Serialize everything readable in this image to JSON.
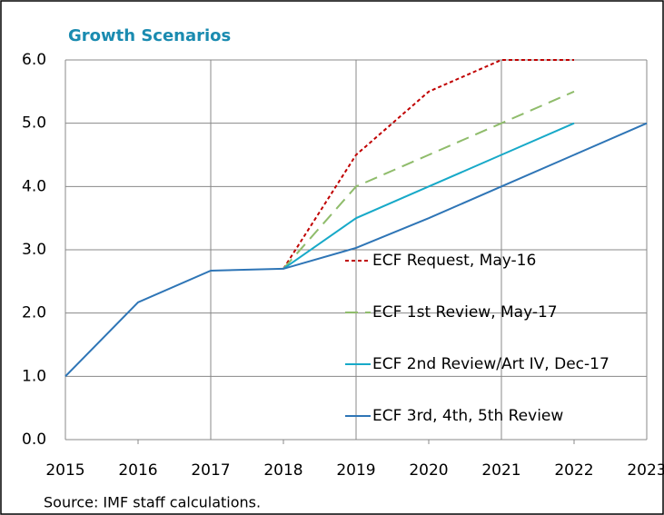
{
  "chart_data": {
    "type": "line",
    "title": "Growth Scenarios",
    "source": "Source: IMF staff calculations.",
    "x": [
      2015,
      2016,
      2017,
      2018,
      2019,
      2020,
      2021,
      2022,
      2023
    ],
    "xlim": [
      2015,
      2023
    ],
    "xticks": [
      2015,
      2016,
      2017,
      2018,
      2019,
      2020,
      2021,
      2022,
      2023
    ],
    "ylim": [
      0,
      6
    ],
    "yticks": [
      {
        "value": 0,
        "label": "0.0"
      },
      {
        "value": 1,
        "label": "1.0"
      },
      {
        "value": 2,
        "label": "2.0"
      },
      {
        "value": 3,
        "label": "3.0"
      },
      {
        "value": 4,
        "label": "4.0"
      },
      {
        "value": 5,
        "label": "5.0"
      },
      {
        "value": 6,
        "label": "6.0"
      }
    ],
    "grid": true,
    "legend": "inside",
    "series": [
      {
        "name": "ECF Request, May-16",
        "color": "#c00000",
        "dash": "dotted",
        "values": [
          null,
          null,
          null,
          2.7,
          4.5,
          5.5,
          6.0,
          6.0,
          null
        ]
      },
      {
        "name": "ECF 1st  Review, May-17",
        "color": "#8fbc6b",
        "dash": "dashed",
        "values": [
          null,
          null,
          null,
          2.7,
          4.0,
          4.5,
          5.0,
          5.5,
          null
        ]
      },
      {
        "name": "ECF 2nd Review/Art IV, Dec-17",
        "color": "#17a9c8",
        "dash": "solid",
        "values": [
          null,
          null,
          null,
          2.7,
          3.5,
          4.0,
          4.5,
          5.0,
          null
        ]
      },
      {
        "name": "ECF 3rd, 4th, 5th Review",
        "color": "#2e75b6",
        "dash": "solid",
        "values": [
          1.0,
          2.17,
          2.67,
          2.7,
          3.03,
          3.5,
          4.0,
          4.5,
          5.0
        ]
      }
    ]
  }
}
